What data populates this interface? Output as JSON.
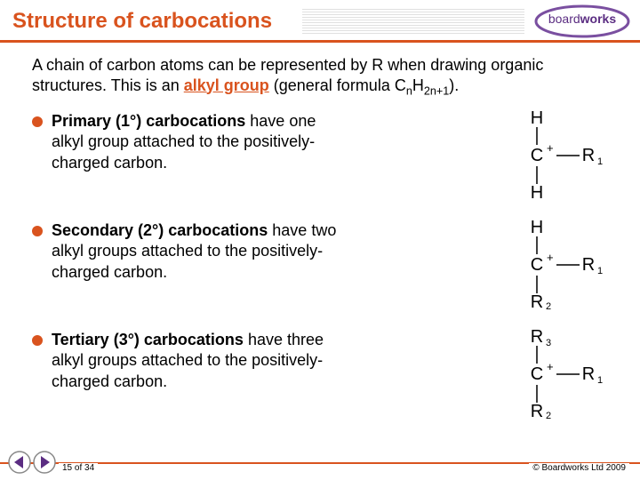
{
  "colors": {
    "accent": "#d9531e",
    "text": "#000000",
    "logo_purple": "#5b2d82",
    "logo_border": "#7a4fa0",
    "grey": "#888888"
  },
  "title": "Structure of carbocations",
  "logo": {
    "text": "boardworks",
    "sub": ""
  },
  "intro": {
    "pre": "A chain of carbon atoms can be represented by R when drawing organic structures. This is an ",
    "alkyl": "alkyl group",
    "post": " (general formula C",
    "f_n": "n",
    "f_mid": "H",
    "f_2n1": "2n+1",
    "end": ")."
  },
  "bullets": [
    {
      "bold": "Primary (1°) carbocations",
      "rest": " have one alkyl group attached to the positively-charged carbon.",
      "diagram": {
        "top": "H",
        "left": null,
        "bottom": "H",
        "right": "R",
        "r_sub": "1",
        "r2": null,
        "r3": null
      }
    },
    {
      "bold": "Secondary (2°) carbocations",
      "rest": " have two alkyl groups attached to the positively-charged carbon.",
      "diagram": {
        "top": "H",
        "left": null,
        "bottom": "R",
        "b_sub": "2",
        "right": "R",
        "r_sub": "1",
        "r3": null
      }
    },
    {
      "bold": "Tertiary (3°) carbocations",
      "rest": " have three alkyl groups attached to the positively-charged carbon.",
      "diagram": {
        "top": "R",
        "t_sub": "3",
        "left": null,
        "bottom": "R",
        "b_sub": "2",
        "right": "R",
        "r_sub": "1"
      }
    }
  ],
  "footer": {
    "page": "15 of 34",
    "copyright": "© Boardworks Ltd 2009"
  }
}
